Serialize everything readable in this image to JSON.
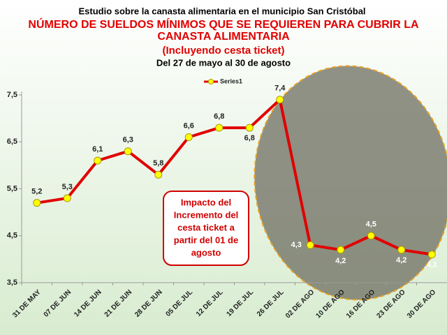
{
  "chart_data": {
    "type": "line",
    "supertitle": "Estudio sobre la canasta alimentaria en el municipio San Cristóbal",
    "title": [
      "NÚMERO DE SUELDOS MÍNIMOS QUE SE REQUIEREN PARA CUBRIR LA",
      "CANASTA ALIMENTARIA"
    ],
    "subtitle": "(Incluyendo cesta ticket)",
    "period": "Del 27 de mayo al 30 de agosto",
    "categories": [
      "31 DE MAY",
      "07 DE JUN",
      "14 DE JUN",
      "21 DE JUN",
      "28 DE JUN",
      "05 DE JUL",
      "12 DE JUL",
      "19 DE JUL",
      "26 DE JUL",
      "02 DE AGO",
      "10 DE AGO",
      "16 DE AGO",
      "23 DE AGO",
      "30 DE AGO"
    ],
    "series": [
      {
        "name": "Series1",
        "color": "#e00000",
        "marker_color": "#ffff00",
        "values": [
          5.2,
          5.3,
          6.1,
          6.3,
          5.8,
          6.6,
          6.8,
          6.8,
          7.4,
          4.3,
          4.2,
          4.5,
          4.2,
          4.1
        ],
        "value_labels": [
          "5,2",
          "5,3",
          "6,1",
          "6,3",
          "5,8",
          "6,6",
          "6,8",
          "6,8",
          "7,4",
          "4,3",
          "4,2",
          "4,5",
          "4,2",
          "4,1"
        ]
      }
    ],
    "ylim": [
      3.5,
      7.5
    ],
    "yticks": [
      {
        "value": 3.5,
        "label": "3,5"
      },
      {
        "value": 4.5,
        "label": "4,5"
      },
      {
        "value": 5.5,
        "label": "5,5"
      },
      {
        "value": 6.5,
        "label": "6,5"
      },
      {
        "value": 7.5,
        "label": "7,5"
      }
    ],
    "legend": "top",
    "annotation": [
      "Impacto del",
      "Incremento del",
      "cesta ticket a",
      "partir del 01 de",
      "agosto"
    ]
  }
}
